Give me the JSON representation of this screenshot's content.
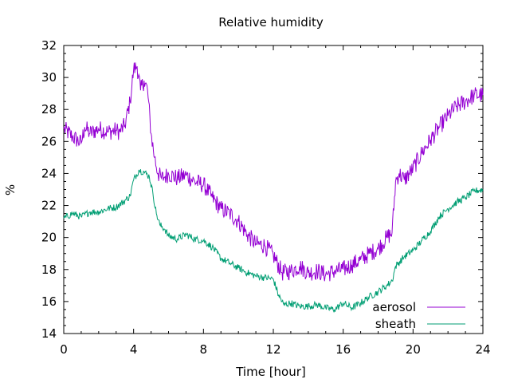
{
  "chart_data": {
    "type": "line",
    "title": "Relative humidity",
    "xlabel": "Time [hour]",
    "ylabel": "%",
    "xlim": [
      0,
      24
    ],
    "ylim": [
      14,
      32
    ],
    "x_ticks": [
      "0",
      "4",
      "8",
      "12",
      "16",
      "20",
      "24"
    ],
    "y_ticks": [
      "14",
      "16",
      "18",
      "20",
      "22",
      "24",
      "26",
      "28",
      "30",
      "32"
    ],
    "grid": false,
    "legend_position": "bottom-right",
    "series": [
      {
        "name": "aerosol",
        "color": "#9400d3",
        "x": [
          0,
          0.5,
          1,
          1.2,
          1.5,
          2,
          2.5,
          3,
          3.2,
          3.5,
          3.8,
          4,
          4.2,
          4.4,
          4.6,
          4.8,
          5,
          5.2,
          5.4,
          5.6,
          5.8,
          6,
          6.5,
          7,
          7.5,
          8,
          8.5,
          9,
          9.5,
          10,
          10.5,
          11,
          11.5,
          12,
          12.5,
          13,
          13.5,
          14,
          14.5,
          15,
          15.5,
          16,
          16.5,
          17,
          17.5,
          18,
          18.5,
          18.8,
          19,
          19.2,
          19.5,
          20,
          20.5,
          21,
          21.5,
          22,
          22.5,
          23,
          23.5,
          24
        ],
        "y": [
          26.8,
          26.3,
          25.9,
          26.9,
          26.5,
          26.8,
          26.6,
          26.7,
          26.6,
          27.0,
          28.5,
          30.5,
          30.7,
          29.2,
          29.8,
          29.2,
          26.5,
          25.0,
          24.0,
          23.7,
          23.8,
          24.0,
          23.7,
          23.9,
          23.5,
          23.3,
          22.5,
          21.8,
          21.5,
          21.0,
          20.2,
          19.6,
          19.5,
          18.9,
          17.8,
          17.9,
          18.2,
          17.8,
          17.9,
          17.7,
          17.9,
          18.0,
          18.3,
          18.6,
          19.0,
          19.3,
          20.0,
          20.3,
          23.5,
          24.0,
          23.6,
          24.3,
          25.3,
          26.1,
          26.9,
          27.6,
          28.2,
          28.5,
          28.9,
          28.9
        ]
      },
      {
        "name": "sheath",
        "color": "#009e73",
        "x": [
          0,
          0.5,
          1,
          1.5,
          2,
          2.5,
          3,
          3.5,
          3.8,
          4,
          4.3,
          4.6,
          4.9,
          5.1,
          5.3,
          5.5,
          5.8,
          6,
          6.5,
          7,
          7.5,
          8,
          8.5,
          9,
          9.5,
          10,
          10.5,
          11,
          11.5,
          12,
          12.3,
          12.6,
          13,
          13.5,
          14,
          14.5,
          15,
          15.5,
          16,
          16.5,
          17,
          17.5,
          18,
          18.5,
          18.8,
          19,
          19.5,
          20,
          20.5,
          21,
          21.5,
          22,
          22.5,
          23,
          23.5,
          24
        ],
        "y": [
          21.2,
          21.5,
          21.3,
          21.6,
          21.6,
          21.8,
          21.9,
          22.3,
          22.6,
          23.6,
          24.2,
          24.1,
          23.8,
          22.8,
          21.5,
          20.8,
          20.5,
          20.1,
          19.9,
          20.2,
          19.9,
          19.8,
          19.4,
          18.7,
          18.4,
          18.1,
          17.8,
          17.6,
          17.5,
          17.4,
          16.4,
          15.8,
          15.9,
          15.7,
          15.7,
          15.8,
          15.6,
          15.5,
          15.9,
          15.6,
          15.9,
          16.3,
          16.6,
          17.0,
          17.3,
          18.2,
          18.8,
          19.2,
          19.8,
          20.4,
          21.3,
          21.8,
          22.2,
          22.5,
          22.9,
          23.0
        ]
      }
    ]
  }
}
